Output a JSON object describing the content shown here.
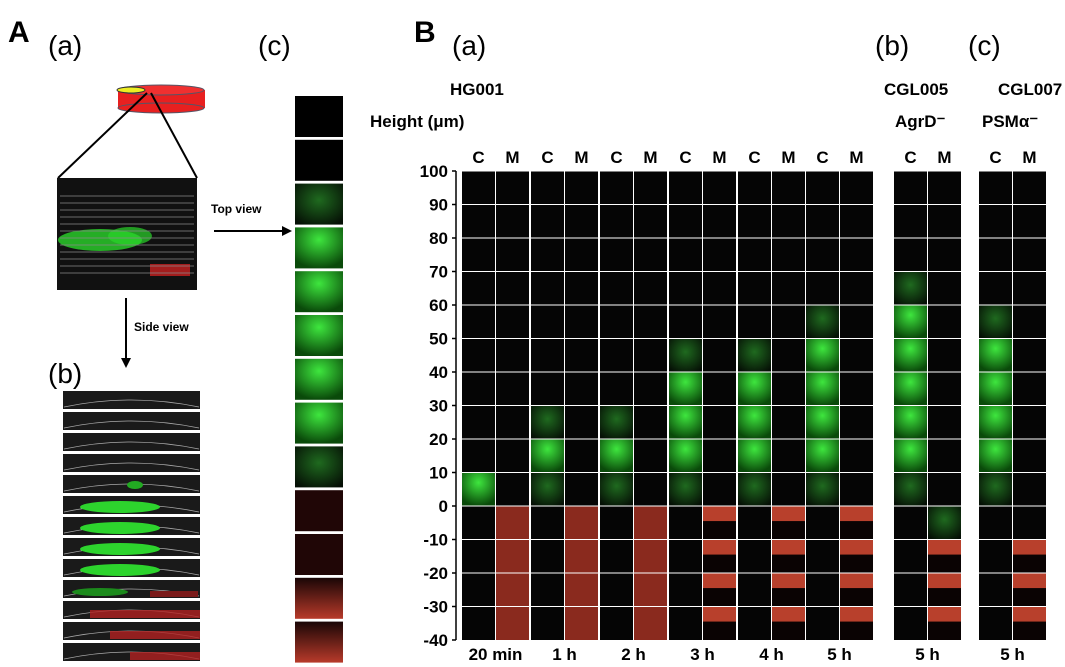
{
  "panel_a": {
    "label": "A",
    "sub_a": "(a)",
    "sub_b": "(b)",
    "sub_c": "(c)",
    "top_view": "Top view",
    "side_view": "Side view"
  },
  "panel_b": {
    "label": "B",
    "sub_a": "(a)",
    "sub_b": "(b)",
    "sub_c": "(c)",
    "strains": [
      "HG001",
      "CGL005",
      "CGL007"
    ],
    "mutants": [
      "AgrD⁻",
      "PSMα⁻"
    ],
    "height_label": "Height (μm)",
    "heights": [
      100,
      90,
      80,
      70,
      60,
      50,
      40,
      30,
      20,
      10,
      0,
      -10,
      -20,
      -30,
      -40
    ],
    "groups": [
      {
        "time": "20 min",
        "headers": [
          "C",
          "M"
        ]
      },
      {
        "time": "1 h",
        "headers": [
          "C",
          "M"
        ]
      },
      {
        "time": "2 h",
        "headers": [
          "C",
          "M"
        ]
      },
      {
        "time": "3 h",
        "headers": [
          "C",
          "M"
        ]
      },
      {
        "time": "4 h",
        "headers": [
          "C",
          "M"
        ]
      },
      {
        "time": "5 h",
        "headers": [
          "C",
          "M"
        ]
      },
      {
        "time": "5 h",
        "headers": [
          "C",
          "M"
        ]
      },
      {
        "time": "5 h",
        "headers": [
          "C",
          "M"
        ]
      }
    ]
  }
}
